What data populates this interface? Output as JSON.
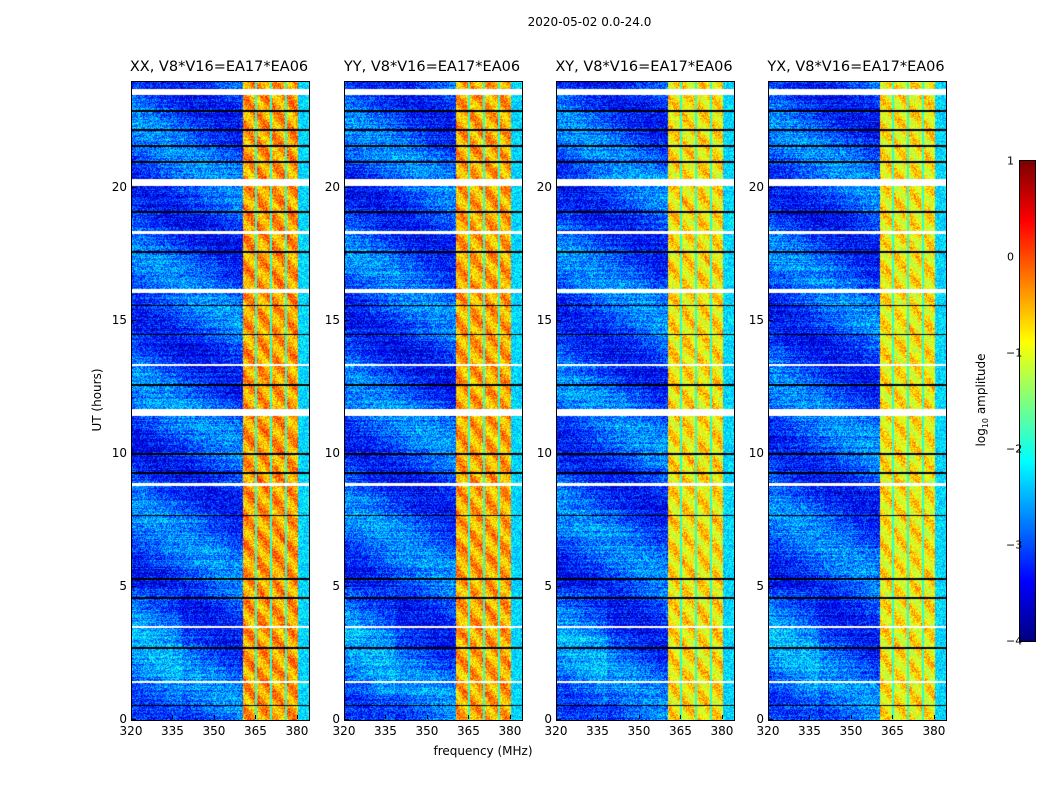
{
  "suptitle": "2020-05-02 0.0-24.0",
  "xlabel": "frequency (MHz)",
  "ylabel": "UT (hours)",
  "colorbar": {
    "label_main": "log",
    "label_sub": "10",
    "label_rest": " amplitude",
    "range": [
      -4,
      1
    ],
    "ticks": [
      "1",
      "0",
      "−1",
      "−2",
      "−3",
      "−4"
    ],
    "tick_values": [
      1,
      0,
      -1,
      -2,
      -3,
      -4
    ],
    "colormap": "jet"
  },
  "chart_data": [
    {
      "type": "heatmap",
      "title": "XX, V8*V16=EA17*EA06",
      "xlim": [
        320,
        384
      ],
      "ylim": [
        0,
        24
      ],
      "band_level": -0.4
    },
    {
      "type": "heatmap",
      "title": "YY, V8*V16=EA17*EA06",
      "xlim": [
        320,
        384
      ],
      "ylim": [
        0,
        24
      ],
      "band_level": -0.45
    },
    {
      "type": "heatmap",
      "title": "XY, V8*V16=EA17*EA06",
      "xlim": [
        320,
        384
      ],
      "ylim": [
        0,
        24
      ],
      "band_level": -0.75
    },
    {
      "type": "heatmap",
      "title": "YX, V8*V16=EA17*EA06",
      "xlim": [
        320,
        384
      ],
      "ylim": [
        0,
        24
      ],
      "band_level": -0.8
    }
  ],
  "shared": {
    "xticks": [
      "320",
      "335",
      "350",
      "365",
      "380"
    ],
    "xtick_values": [
      320,
      335,
      350,
      365,
      380
    ],
    "yticks": [
      "0",
      "5",
      "10",
      "15",
      "20"
    ],
    "ytick_values": [
      0,
      5,
      10,
      15,
      20
    ],
    "bright_band_mhz": [
      360.3,
      380
    ],
    "background_level": -3.0,
    "flagged_hours": [
      [
        23.5,
        23.75
      ],
      [
        20.1,
        20.35
      ],
      [
        16.05,
        16.2
      ],
      [
        11.45,
        11.7
      ],
      [
        3.45,
        3.55
      ],
      [
        18.3,
        18.4
      ],
      [
        13.3,
        13.4
      ],
      [
        8.8,
        8.9
      ],
      [
        1.4,
        1.45
      ]
    ],
    "dropout_hours": [
      0.55,
      2.7,
      4.6,
      5.3,
      7.7,
      9.3,
      10.0,
      12.6,
      14.5,
      15.6,
      17.6,
      19.1,
      21.0,
      21.6,
      22.2,
      22.9
    ]
  }
}
